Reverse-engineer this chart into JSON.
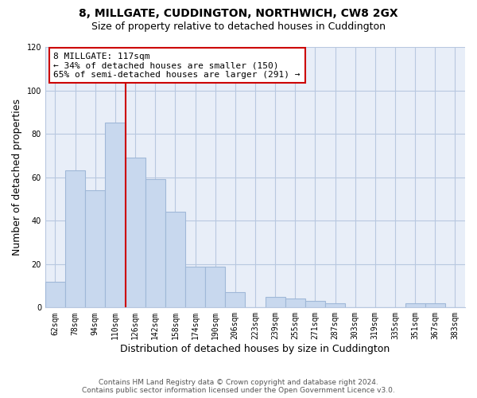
{
  "title": "8, MILLGATE, CUDDINGTON, NORTHWICH, CW8 2GX",
  "subtitle": "Size of property relative to detached houses in Cuddington",
  "xlabel": "Distribution of detached houses by size in Cuddington",
  "ylabel": "Number of detached properties",
  "bar_color": "#c8d8ee",
  "bar_edge_color": "#a0b8d8",
  "plot_bg_color": "#e8eef8",
  "background_color": "#ffffff",
  "bins": [
    "62sqm",
    "78sqm",
    "94sqm",
    "110sqm",
    "126sqm",
    "142sqm",
    "158sqm",
    "174sqm",
    "190sqm",
    "206sqm",
    "223sqm",
    "239sqm",
    "255sqm",
    "271sqm",
    "287sqm",
    "303sqm",
    "319sqm",
    "335sqm",
    "351sqm",
    "367sqm",
    "383sqm"
  ],
  "values": [
    12,
    63,
    54,
    85,
    69,
    59,
    44,
    19,
    19,
    7,
    0,
    5,
    4,
    3,
    2,
    0,
    0,
    0,
    2,
    2,
    0
  ],
  "ylim": [
    0,
    120
  ],
  "yticks": [
    0,
    20,
    40,
    60,
    80,
    100,
    120
  ],
  "vline_x_idx": 3.5,
  "vline_color": "#cc0000",
  "annotation_title": "8 MILLGATE: 117sqm",
  "annotation_line1": "← 34% of detached houses are smaller (150)",
  "annotation_line2": "65% of semi-detached houses are larger (291) →",
  "annotation_box_color": "#ffffff",
  "annotation_box_edge": "#cc0000",
  "footer1": "Contains HM Land Registry data © Crown copyright and database right 2024.",
  "footer2": "Contains public sector information licensed under the Open Government Licence v3.0.",
  "title_fontsize": 10,
  "subtitle_fontsize": 9,
  "ylabel_fontsize": 9,
  "xlabel_fontsize": 9,
  "tick_fontsize": 7,
  "annotation_fontsize": 8,
  "footer_fontsize": 6.5
}
